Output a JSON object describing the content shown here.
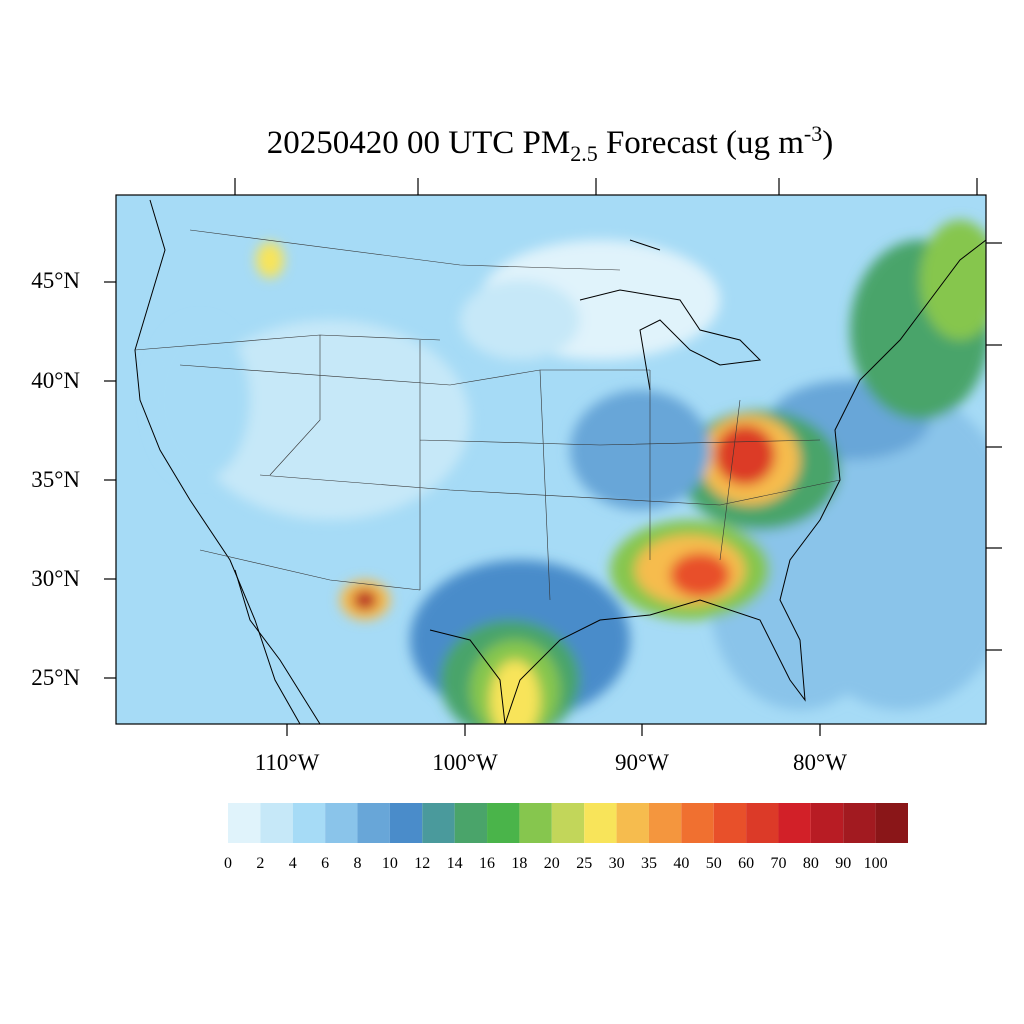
{
  "title": {
    "main": "20250420 00 UTC PM",
    "sub": "2.5",
    "mid": " Forecast (ug m",
    "sup": "-3",
    "end": ")"
  },
  "map": {
    "lat_labels": [
      "45°N",
      "40°N",
      "35°N",
      "30°N",
      "25°N"
    ],
    "lon_labels": [
      "110°W",
      "100°W",
      "90°W",
      "80°W"
    ]
  },
  "colorbar": {
    "levels": [
      0,
      2,
      4,
      6,
      8,
      10,
      12,
      14,
      16,
      18,
      20,
      25,
      30,
      35,
      40,
      50,
      60,
      70,
      80,
      90,
      100
    ],
    "colors": [
      "#e0f3fb",
      "#c6e8f8",
      "#a6dbf6",
      "#8ac4ea",
      "#68a6d8",
      "#4a8cca",
      "#4a9a9c",
      "#4aa46a",
      "#4ab44a",
      "#86c64e",
      "#c2d65a",
      "#f8e45a",
      "#f6bc4e",
      "#f4963e",
      "#f07030",
      "#e8502a",
      "#dc3a28",
      "#d22028",
      "#b81c24",
      "#a21a20",
      "#8a1618"
    ]
  }
}
